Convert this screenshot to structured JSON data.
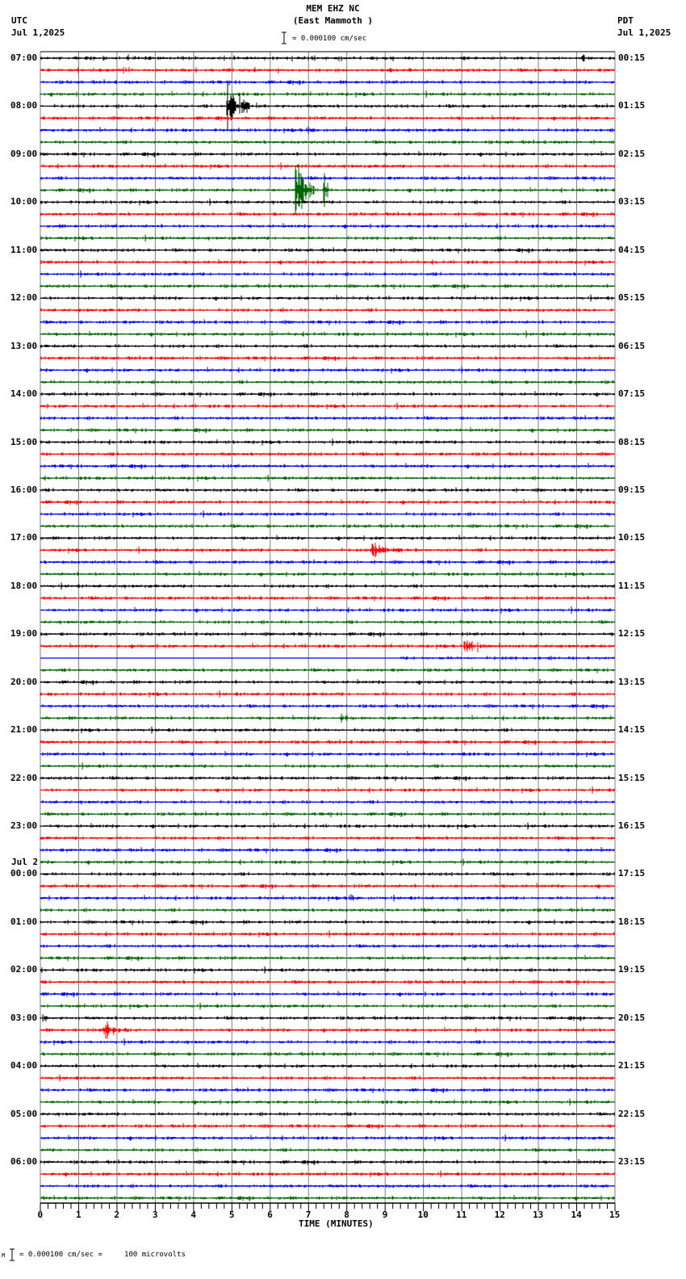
{
  "header": {
    "station": "MEM EHZ NC",
    "location": "(East Mammoth )",
    "left_tz": "UTC",
    "left_date": "Jul 1,2025",
    "right_tz": "PDT",
    "right_date": "Jul 1,2025",
    "scale_text": "= 0.000100 cm/sec"
  },
  "footer": {
    "scale_prefix": "M",
    "scale_text": "= 0.000100 cm/sec =     100 microvolts"
  },
  "colors": {
    "trace_cycle": [
      "#000000",
      "#ff0000",
      "#0000ff",
      "#006400"
    ],
    "grid": "#808080"
  },
  "chart_data": {
    "type": "line",
    "title": "MEM EHZ NC (East Mammoth )",
    "subtitle": "= 0.000100 cm/sec",
    "xlabel": "TIME (MINUTES)",
    "ylabel": "",
    "xlim": [
      0,
      15
    ],
    "x_ticks": [
      "0",
      "1",
      "2",
      "3",
      "4",
      "5",
      "6",
      "7",
      "8",
      "9",
      "10",
      "11",
      "12",
      "13",
      "14",
      "15"
    ],
    "grid": true,
    "traces_per_hour": 4,
    "minutes_per_trace": 15,
    "left_labels": [
      {
        "row": 0,
        "text": "07:00"
      },
      {
        "row": 4,
        "text": "08:00"
      },
      {
        "row": 8,
        "text": "09:00"
      },
      {
        "row": 12,
        "text": "10:00"
      },
      {
        "row": 16,
        "text": "11:00"
      },
      {
        "row": 20,
        "text": "12:00"
      },
      {
        "row": 24,
        "text": "13:00"
      },
      {
        "row": 28,
        "text": "14:00"
      },
      {
        "row": 32,
        "text": "15:00"
      },
      {
        "row": 36,
        "text": "16:00"
      },
      {
        "row": 40,
        "text": "17:00"
      },
      {
        "row": 44,
        "text": "18:00"
      },
      {
        "row": 48,
        "text": "19:00"
      },
      {
        "row": 52,
        "text": "20:00"
      },
      {
        "row": 56,
        "text": "21:00"
      },
      {
        "row": 60,
        "text": "22:00"
      },
      {
        "row": 64,
        "text": "23:00"
      },
      {
        "row": 68,
        "text": "00:00",
        "date": "Jul 2"
      },
      {
        "row": 72,
        "text": "01:00"
      },
      {
        "row": 76,
        "text": "02:00"
      },
      {
        "row": 80,
        "text": "03:00"
      },
      {
        "row": 84,
        "text": "04:00"
      },
      {
        "row": 88,
        "text": "05:00"
      },
      {
        "row": 92,
        "text": "06:00"
      }
    ],
    "right_labels": [
      {
        "row": 0,
        "text": "00:15"
      },
      {
        "row": 4,
        "text": "01:15"
      },
      {
        "row": 8,
        "text": "02:15"
      },
      {
        "row": 12,
        "text": "03:15"
      },
      {
        "row": 16,
        "text": "04:15"
      },
      {
        "row": 20,
        "text": "05:15"
      },
      {
        "row": 24,
        "text": "06:15"
      },
      {
        "row": 28,
        "text": "07:15"
      },
      {
        "row": 32,
        "text": "08:15"
      },
      {
        "row": 36,
        "text": "09:15"
      },
      {
        "row": 40,
        "text": "10:15"
      },
      {
        "row": 44,
        "text": "11:15"
      },
      {
        "row": 48,
        "text": "12:15"
      },
      {
        "row": 52,
        "text": "13:15"
      },
      {
        "row": 56,
        "text": "14:15"
      },
      {
        "row": 60,
        "text": "15:15"
      },
      {
        "row": 64,
        "text": "16:15"
      },
      {
        "row": 68,
        "text": "17:15"
      },
      {
        "row": 72,
        "text": "18:15"
      },
      {
        "row": 76,
        "text": "19:15"
      },
      {
        "row": 80,
        "text": "20:15"
      },
      {
        "row": 84,
        "text": "21:15"
      },
      {
        "row": 88,
        "text": "22:15"
      },
      {
        "row": 92,
        "text": "23:15"
      }
    ],
    "row_count": 96,
    "notable_events": [
      {
        "row": 0,
        "minute": 7.8,
        "amplitude": 6,
        "duration": 0.6
      },
      {
        "row": 0,
        "minute": 14.2,
        "amplitude": 6,
        "duration": 0.6
      },
      {
        "row": 4,
        "minute": 4.9,
        "amplitude": 40,
        "duration": 1.0,
        "note": "large spike spanning rows 3-5"
      },
      {
        "row": 6,
        "minute": 7.0,
        "amplitude": 5,
        "duration": 1.0
      },
      {
        "row": 11,
        "minute": 6.7,
        "amplitude": 60,
        "duration": 0.6,
        "note": "green glitch spikes rows 7-15"
      },
      {
        "row": 11,
        "minute": 7.4,
        "amplitude": 50,
        "duration": 0.2
      },
      {
        "row": 41,
        "minute": 8.7,
        "amplitude": 14,
        "duration": 1.5
      },
      {
        "row": 49,
        "minute": 11.1,
        "amplitude": 22,
        "duration": 1.0
      },
      {
        "row": 50,
        "minute": 0.0,
        "amplitude": 0,
        "duration": 9.4,
        "note": "flat gap"
      },
      {
        "row": 55,
        "minute": 7.9,
        "amplitude": 6,
        "duration": 0.5
      },
      {
        "row": 58,
        "minute": 10.4,
        "amplitude": 6,
        "duration": 0.6
      },
      {
        "row": 70,
        "minute": 8.1,
        "amplitude": 7,
        "duration": 0.6
      },
      {
        "row": 80,
        "minute": 0.1,
        "amplitude": 8,
        "duration": 0.4
      },
      {
        "row": 81,
        "minute": 1.7,
        "amplitude": 18,
        "duration": 1.0
      }
    ]
  }
}
